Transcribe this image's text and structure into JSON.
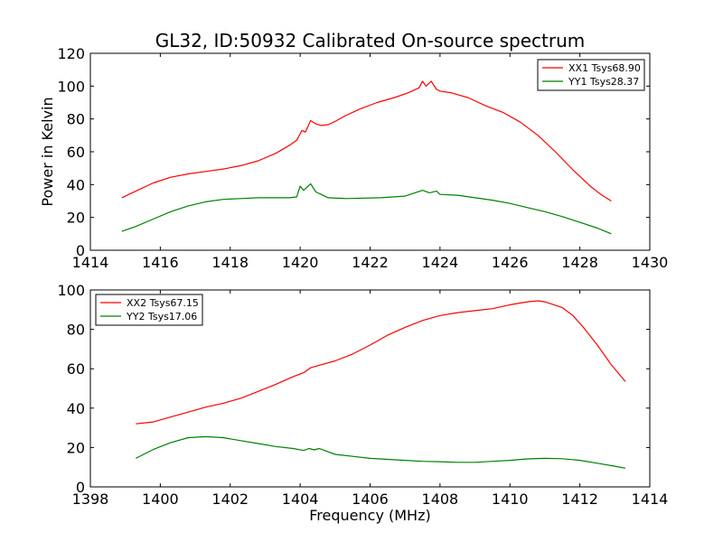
{
  "chart_data": [
    {
      "type": "line",
      "title": "GL32, ID:50932 Calibrated On-source spectrum",
      "xlabel": "",
      "ylabel": "Power in Kelvin",
      "xlim": [
        1414,
        1430
      ],
      "ylim": [
        0,
        120
      ],
      "xticks": [
        1414,
        1416,
        1418,
        1420,
        1422,
        1424,
        1426,
        1428,
        1430
      ],
      "yticks": [
        0,
        20,
        40,
        60,
        80,
        100,
        120
      ],
      "grid": false,
      "legend_position": "top-right",
      "series": [
        {
          "name": "XX1 Tsys68.90",
          "color": "#ff0000",
          "x": [
            1414.9,
            1415.3,
            1415.8,
            1416.3,
            1416.8,
            1417.3,
            1417.8,
            1418.3,
            1418.8,
            1419.3,
            1419.7,
            1419.9,
            1420.05,
            1420.15,
            1420.3,
            1420.45,
            1420.6,
            1420.8,
            1421.0,
            1421.3,
            1421.7,
            1422.2,
            1422.7,
            1423.1,
            1423.4,
            1423.5,
            1423.6,
            1423.75,
            1423.9,
            1424.0,
            1424.3,
            1424.8,
            1425.3,
            1425.8,
            1426.3,
            1426.8,
            1427.3,
            1427.8,
            1428.3,
            1428.6,
            1428.9
          ],
          "y": [
            32,
            36,
            41,
            44.5,
            46.5,
            48,
            49.5,
            51.5,
            54.5,
            59,
            64,
            67,
            73,
            72,
            79,
            77,
            76,
            76.5,
            78.5,
            82,
            86,
            90,
            93,
            96,
            99,
            103,
            100,
            103,
            98,
            97,
            96,
            93,
            88,
            84,
            78,
            70,
            60,
            49,
            39,
            34,
            30
          ]
        },
        {
          "name": "YY1 Tsys28.37",
          "color": "#008000",
          "x": [
            1414.9,
            1415.3,
            1415.8,
            1416.3,
            1416.8,
            1417.3,
            1417.8,
            1418.3,
            1418.8,
            1419.3,
            1419.7,
            1419.9,
            1420.0,
            1420.1,
            1420.2,
            1420.3,
            1420.45,
            1420.6,
            1420.8,
            1421.3,
            1422.3,
            1423.0,
            1423.5,
            1423.7,
            1423.9,
            1424.0,
            1424.5,
            1425.0,
            1425.5,
            1426.0,
            1426.5,
            1427.0,
            1427.5,
            1428.0,
            1428.5,
            1428.9
          ],
          "y": [
            11.5,
            14.5,
            19,
            23.5,
            27,
            29.5,
            31,
            31.5,
            32,
            32,
            32,
            32.5,
            39,
            36.5,
            38.5,
            40.5,
            35.5,
            34,
            32,
            31.5,
            32,
            33,
            36.5,
            35,
            36,
            34,
            33.5,
            32,
            30.5,
            28.5,
            26,
            23.5,
            20.5,
            17,
            13.5,
            10
          ]
        }
      ]
    },
    {
      "type": "line",
      "title": "",
      "xlabel": "Frequency (MHz)",
      "ylabel": "",
      "xlim": [
        1398,
        1414
      ],
      "ylim": [
        0,
        100
      ],
      "xticks": [
        1398,
        1400,
        1402,
        1404,
        1406,
        1408,
        1410,
        1412,
        1414
      ],
      "yticks": [
        0,
        20,
        40,
        60,
        80,
        100
      ],
      "grid": false,
      "legend_position": "top-left",
      "series": [
        {
          "name": "XX2 Tsys67.15",
          "color": "#ff0000",
          "x": [
            1399.3,
            1399.8,
            1400.3,
            1400.8,
            1401.3,
            1401.8,
            1402.3,
            1402.8,
            1403.3,
            1403.8,
            1404.1,
            1404.3,
            1404.6,
            1405.0,
            1405.5,
            1406.0,
            1406.5,
            1407.0,
            1407.5,
            1408.0,
            1408.5,
            1409.0,
            1409.5,
            1410.0,
            1410.5,
            1410.8,
            1411.0,
            1411.5,
            1411.8,
            1412.1,
            1412.5,
            1412.9,
            1413.3
          ],
          "y": [
            32,
            33,
            35.5,
            38,
            40.5,
            42.5,
            45,
            48.5,
            52,
            56,
            58,
            60.5,
            62,
            64,
            67.5,
            72,
            77,
            81,
            84.5,
            87,
            88.5,
            89.5,
            90.5,
            92.5,
            94,
            94.5,
            94,
            91,
            87,
            81,
            72,
            62,
            53.5
          ]
        },
        {
          "name": "YY2 Tsys17.06",
          "color": "#008000",
          "x": [
            1399.3,
            1399.8,
            1400.3,
            1400.8,
            1401.3,
            1401.8,
            1402.3,
            1402.8,
            1403.3,
            1403.8,
            1404.1,
            1404.25,
            1404.4,
            1404.55,
            1404.7,
            1405.0,
            1405.5,
            1406.0,
            1406.5,
            1407.0,
            1407.5,
            1408.0,
            1408.5,
            1409.0,
            1409.5,
            1410.0,
            1410.5,
            1411.0,
            1411.5,
            1412.0,
            1412.5,
            1413.0,
            1413.3
          ],
          "y": [
            14.5,
            19,
            22.5,
            25,
            25.5,
            25,
            23.5,
            22,
            20.5,
            19.5,
            18.5,
            19.5,
            18.8,
            19.5,
            18.5,
            16.5,
            15.5,
            14.5,
            14,
            13.5,
            13,
            12.8,
            12.5,
            12.5,
            13,
            13.5,
            14.2,
            14.5,
            14.3,
            13.5,
            12,
            10.5,
            9.5
          ]
        }
      ]
    }
  ]
}
